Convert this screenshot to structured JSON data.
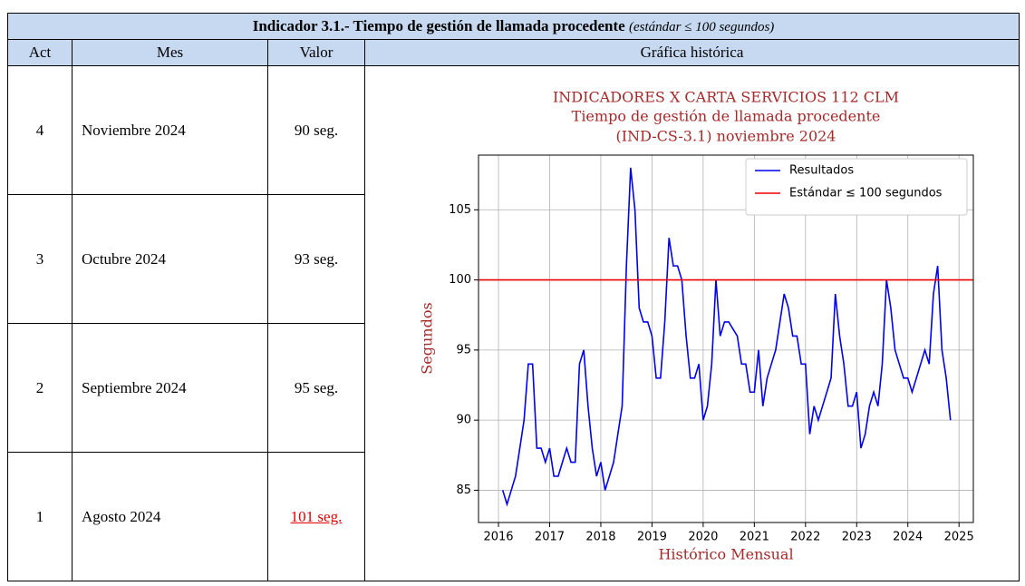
{
  "table": {
    "title": "Indicador 3.1.- Tiempo de gestión de llamada procedente",
    "title_note": "(estándar ≤ 100 segundos)",
    "headers": [
      "Act",
      "Mes",
      "Valor",
      "Gráfica histórica"
    ],
    "rows": [
      [
        "4",
        "Noviembre 2024",
        "90 seg."
      ],
      [
        "3",
        "Octubre 2024",
        "93 seg."
      ],
      [
        "2",
        "Septiembre 2024",
        "95 seg."
      ],
      [
        "1",
        "Agosto 2024",
        "101 seg."
      ]
    ]
  },
  "chart_data": {
    "type": "line",
    "title": [
      "INDICADORES X CARTA SERVICIOS 112 CLM",
      "Tiempo de gestión de llamada procedente",
      "(IND-CS-3.1) noviembre 2024"
    ],
    "x_label": "Histórico Mensual",
    "y_label": "Segundos",
    "x": [
      2016.083,
      2016.167,
      2016.25,
      2016.333,
      2016.417,
      2016.5,
      2016.583,
      2016.667,
      2016.75,
      2016.833,
      2016.917,
      2017,
      2017.083,
      2017.167,
      2017.25,
      2017.333,
      2017.417,
      2017.5,
      2017.583,
      2017.667,
      2017.75,
      2017.833,
      2017.917,
      2018,
      2018.083,
      2018.167,
      2018.25,
      2018.333,
      2018.417,
      2018.5,
      2018.583,
      2018.667,
      2018.75,
      2018.833,
      2018.917,
      2019,
      2019.083,
      2019.167,
      2019.25,
      2019.333,
      2019.417,
      2019.5,
      2019.583,
      2019.667,
      2019.75,
      2019.833,
      2019.917,
      2020,
      2020.083,
      2020.167,
      2020.25,
      2020.333,
      2020.417,
      2020.5,
      2020.583,
      2020.667,
      2020.75,
      2020.833,
      2020.917,
      2021,
      2021.083,
      2021.167,
      2021.25,
      2021.333,
      2021.417,
      2021.5,
      2021.583,
      2021.667,
      2021.75,
      2021.833,
      2021.917,
      2022,
      2022.083,
      2022.167,
      2022.25,
      2022.333,
      2022.417,
      2022.5,
      2022.583,
      2022.667,
      2022.75,
      2022.833,
      2022.917,
      2023,
      2023.083,
      2023.167,
      2023.25,
      2023.333,
      2023.417,
      2023.5,
      2023.583,
      2023.667,
      2023.75,
      2023.833,
      2023.917,
      2024,
      2024.083,
      2024.167,
      2024.25,
      2024.333,
      2024.417,
      2024.5,
      2024.583,
      2024.667,
      2024.75,
      2024.833
    ],
    "series": [
      {
        "name": "Resultados",
        "color": "#0000ee",
        "values": [
          85,
          84,
          85,
          86,
          88,
          90,
          94,
          94,
          88,
          88,
          87,
          88,
          86,
          86,
          87,
          88,
          87,
          87,
          94,
          95,
          91,
          88,
          86,
          87,
          85,
          86,
          87,
          89,
          91,
          101,
          108,
          105,
          98,
          97,
          97,
          96,
          93,
          93,
          97,
          103,
          101,
          101,
          100,
          96,
          93,
          93,
          94,
          90,
          91,
          94,
          100,
          96,
          97,
          97,
          96.5,
          96,
          94,
          94,
          92,
          92,
          95,
          91,
          93,
          94,
          95,
          97,
          99,
          98,
          96,
          96,
          94,
          94,
          89,
          91,
          90,
          91,
          92,
          93,
          99,
          96,
          94,
          91,
          91,
          92,
          88,
          89,
          91,
          92,
          91,
          94,
          100,
          98,
          95,
          94,
          93,
          93,
          92,
          93,
          94,
          95,
          94,
          99,
          101,
          95,
          93,
          90
        ]
      }
    ],
    "reference_lines": [
      {
        "name": "Estándar ≤ 100 segundos",
        "color": "#ee0000",
        "value": 100
      }
    ],
    "xlim": [
      2015.61,
      2025.28
    ],
    "ylim": [
      82.7,
      108.9
    ],
    "xticks": [
      2016,
      2017,
      2018,
      2019,
      2020,
      2021,
      2022,
      2023,
      2024,
      2025
    ],
    "yticks": [
      85,
      90,
      95,
      100,
      105
    ],
    "grid": true,
    "legend": "upper right"
  }
}
